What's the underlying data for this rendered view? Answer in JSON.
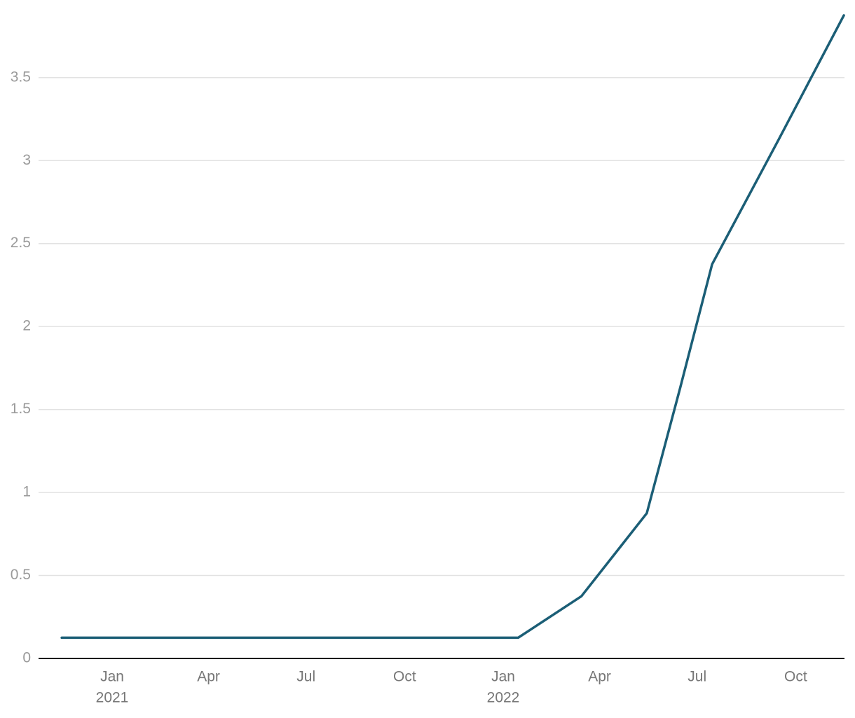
{
  "chart_data": {
    "type": "line",
    "x": [
      "2020-11",
      "2022-01",
      "2022-03",
      "2022-05",
      "2022-06",
      "2022-07",
      "2022-09",
      "2022-11"
    ],
    "series": [
      {
        "color": "#1b5e76",
        "values": [
          0.125,
          0.125,
          0.375,
          0.875,
          1.625,
          2.375,
          3.125,
          3.875
        ]
      }
    ],
    "ylim": [
      0,
      3.9
    ],
    "yticks": [
      0,
      0.5,
      1,
      1.5,
      2,
      2.5,
      3,
      3.5
    ],
    "xticks": [
      {
        "value": "2021-01",
        "label": "Jan"
      },
      {
        "value": "2021-04",
        "label": "Apr"
      },
      {
        "value": "2021-07",
        "label": "Jul"
      },
      {
        "value": "2021-10",
        "label": "Oct"
      },
      {
        "value": "2022-01",
        "label": "Jan"
      },
      {
        "value": "2022-04",
        "label": "Apr"
      },
      {
        "value": "2022-07",
        "label": "Jul"
      },
      {
        "value": "2022-10",
        "label": "Oct"
      }
    ],
    "xtick_years": [
      {
        "value": "2021-01",
        "label": "2021"
      },
      {
        "value": "2022-01",
        "label": "2022"
      }
    ],
    "grid": true
  }
}
